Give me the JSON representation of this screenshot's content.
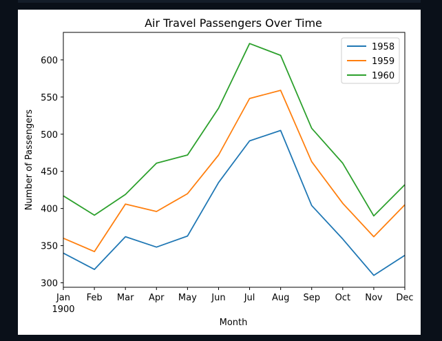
{
  "chart_data": {
    "type": "line",
    "title": "Air Travel Passengers Over Time",
    "xlabel": "Month",
    "ylabel": "Number of Passengers",
    "categories": [
      "Jan",
      "Feb",
      "Mar",
      "Apr",
      "May",
      "Jun",
      "Jul",
      "Aug",
      "Sep",
      "Oct",
      "Nov",
      "Dec"
    ],
    "first_tick_sublabel": "1900",
    "yticks": [
      300,
      350,
      400,
      450,
      500,
      550,
      600
    ],
    "ylim": [
      294,
      637
    ],
    "grid": false,
    "legend_position": "top-right",
    "series": [
      {
        "name": "1958",
        "color": "#1f77b4",
        "values": [
          340,
          318,
          362,
          348,
          363,
          435,
          491,
          505,
          404,
          359,
          310,
          337
        ]
      },
      {
        "name": "1959",
        "color": "#ff7f0e",
        "values": [
          360,
          342,
          406,
          396,
          420,
          472,
          548,
          559,
          463,
          407,
          362,
          405
        ]
      },
      {
        "name": "1960",
        "color": "#2ca02c",
        "values": [
          417,
          391,
          419,
          461,
          472,
          535,
          622,
          606,
          508,
          461,
          390,
          432
        ]
      }
    ]
  }
}
